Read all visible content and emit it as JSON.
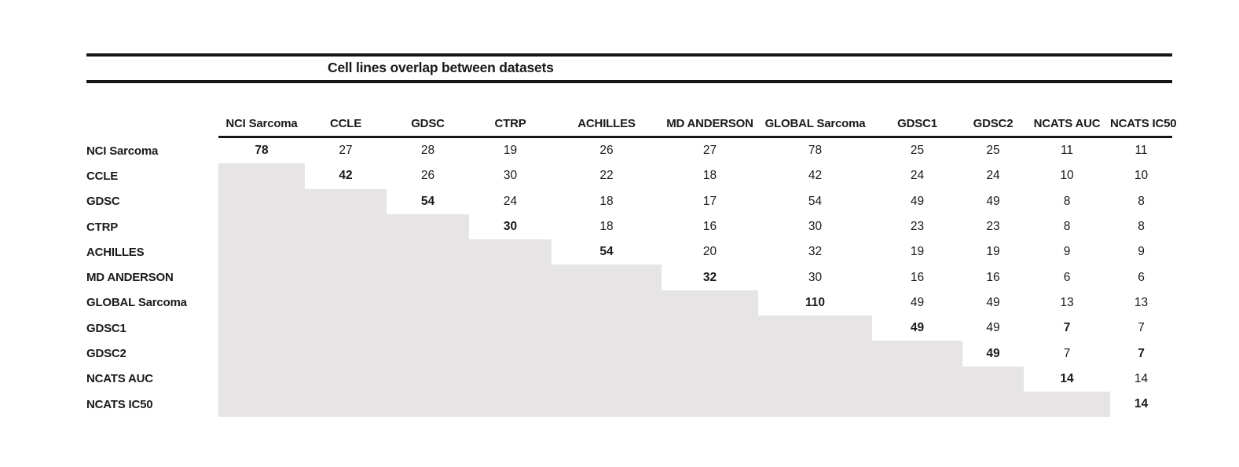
{
  "title": "Cell lines overlap between datasets",
  "colors": {
    "background": "#ffffff",
    "shaded_cell": "#e6e4e5",
    "rule": "#161616",
    "text": "#1a1a1a"
  },
  "chart_data": {
    "type": "table",
    "title": "Cell lines overlap between datasets",
    "description_visible": "Upper-triangular overlap matrix; lower triangle shaded gray with no values; diagonal values bold",
    "categories": [
      "NCI Sarcoma",
      "CCLE",
      "GDSC",
      "CTRP",
      "ACHILLES",
      "MD ANDERSON",
      "GLOBAL Sarcoma",
      "GDSC1",
      "GDSC2",
      "NCATS AUC",
      "NCATS IC50"
    ],
    "matrix": [
      [
        78,
        27,
        28,
        19,
        26,
        27,
        78,
        25,
        25,
        11,
        11
      ],
      [
        null,
        42,
        26,
        30,
        22,
        18,
        42,
        24,
        24,
        10,
        10
      ],
      [
        null,
        null,
        54,
        24,
        18,
        17,
        54,
        49,
        49,
        8,
        8
      ],
      [
        null,
        null,
        null,
        30,
        18,
        16,
        30,
        23,
        23,
        8,
        8
      ],
      [
        null,
        null,
        null,
        null,
        54,
        20,
        32,
        19,
        19,
        9,
        9
      ],
      [
        null,
        null,
        null,
        null,
        null,
        32,
        30,
        16,
        16,
        6,
        6
      ],
      [
        null,
        null,
        null,
        null,
        null,
        null,
        110,
        49,
        49,
        13,
        13
      ],
      [
        null,
        null,
        null,
        null,
        null,
        null,
        null,
        49,
        49,
        7,
        7
      ],
      [
        null,
        null,
        null,
        null,
        null,
        null,
        null,
        null,
        49,
        7,
        7
      ],
      [
        null,
        null,
        null,
        null,
        null,
        null,
        null,
        null,
        null,
        14,
        14
      ],
      [
        null,
        null,
        null,
        null,
        null,
        null,
        null,
        null,
        null,
        null,
        14
      ]
    ],
    "bold_cells": [
      [
        0,
        0
      ],
      [
        1,
        1
      ],
      [
        2,
        2
      ],
      [
        3,
        3
      ],
      [
        4,
        4
      ],
      [
        5,
        5
      ],
      [
        6,
        6
      ],
      [
        7,
        7
      ],
      [
        8,
        8
      ],
      [
        9,
        9
      ],
      [
        10,
        10
      ],
      [
        7,
        9
      ],
      [
        8,
        10
      ]
    ],
    "shaded_region": "lower_triangle"
  }
}
